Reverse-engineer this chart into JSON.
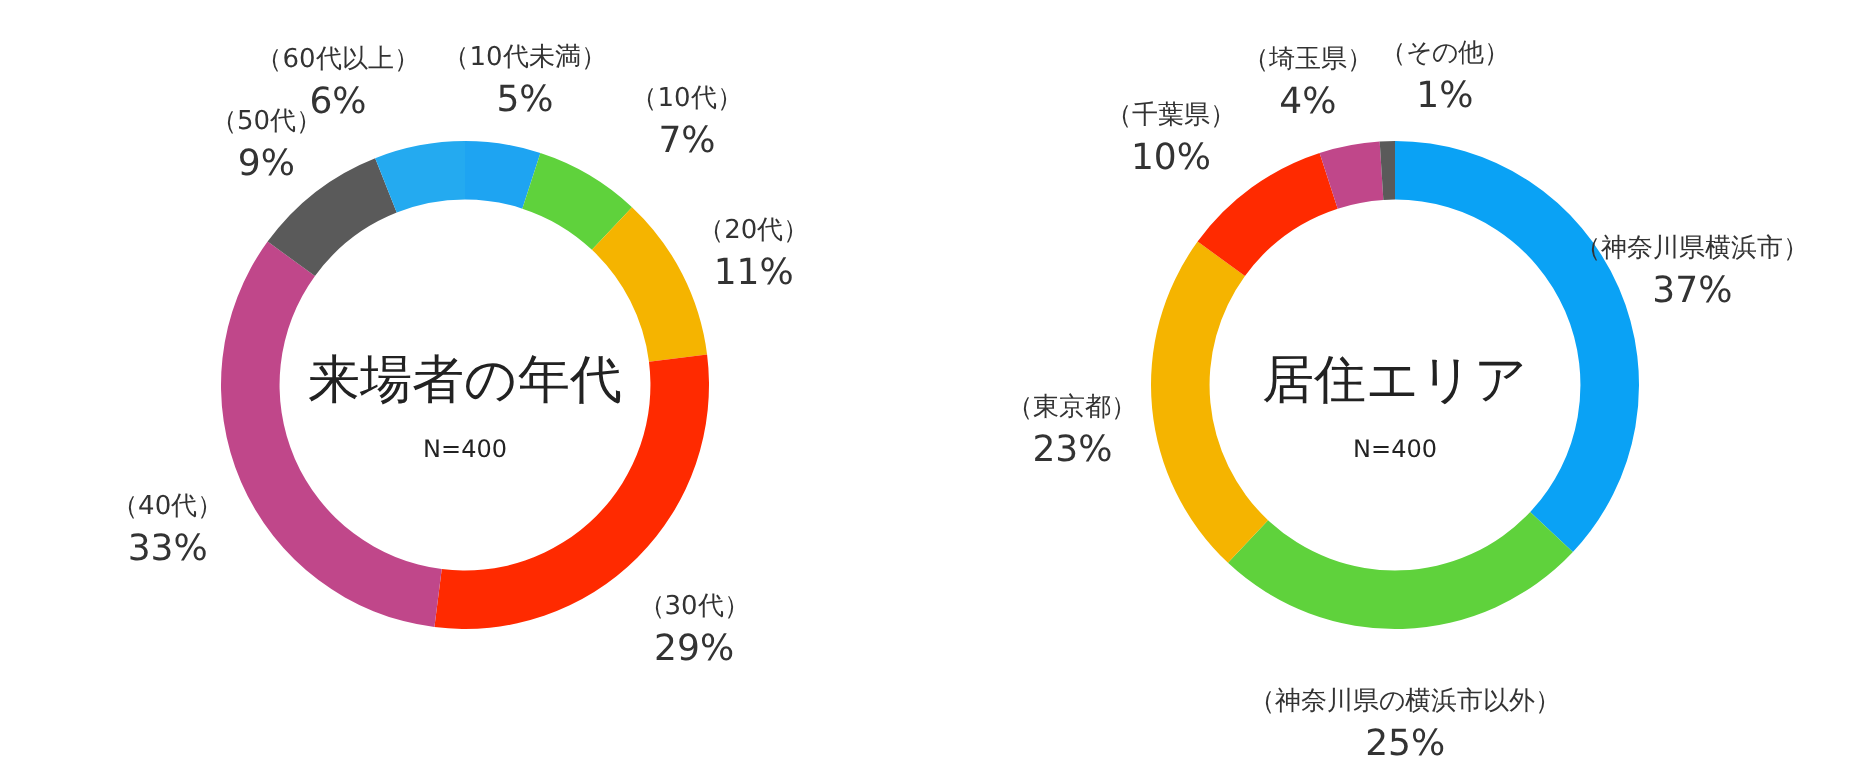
{
  "chart_data": [
    {
      "type": "donut",
      "title": "来場者の年代",
      "subtitle": "N=400",
      "categories": [
        "（10代未満）",
        "（10代）",
        "（20代）",
        "（30代）",
        "（40代）",
        "（50代）",
        "（60代以上）"
      ],
      "values": [
        5,
        7,
        11,
        29,
        33,
        9,
        6
      ],
      "value_labels": [
        "5%",
        "7%",
        "11%",
        "29%",
        "33%",
        "9%",
        "6%"
      ],
      "colors": [
        "#1ea4f2",
        "#5fd23c",
        "#f5b400",
        "#ff2a00",
        "#c0478a",
        "#5a5a5a",
        "#24aaf0"
      ]
    },
    {
      "type": "donut",
      "title": "居住エリア",
      "subtitle": "N=400",
      "categories": [
        "（神奈川県横浜市）",
        "（神奈川県の横浜市以外）",
        "（東京都）",
        "（千葉県）",
        "（埼玉県）",
        "（その他）"
      ],
      "values": [
        37,
        25,
        23,
        10,
        4,
        1
      ],
      "value_labels": [
        "37%",
        "25%",
        "23%",
        "10%",
        "4%",
        "1%"
      ],
      "colors": [
        "#0aa2f5",
        "#5fd23c",
        "#f5b400",
        "#ff2a00",
        "#c0478a",
        "#5a5a5a"
      ]
    }
  ]
}
